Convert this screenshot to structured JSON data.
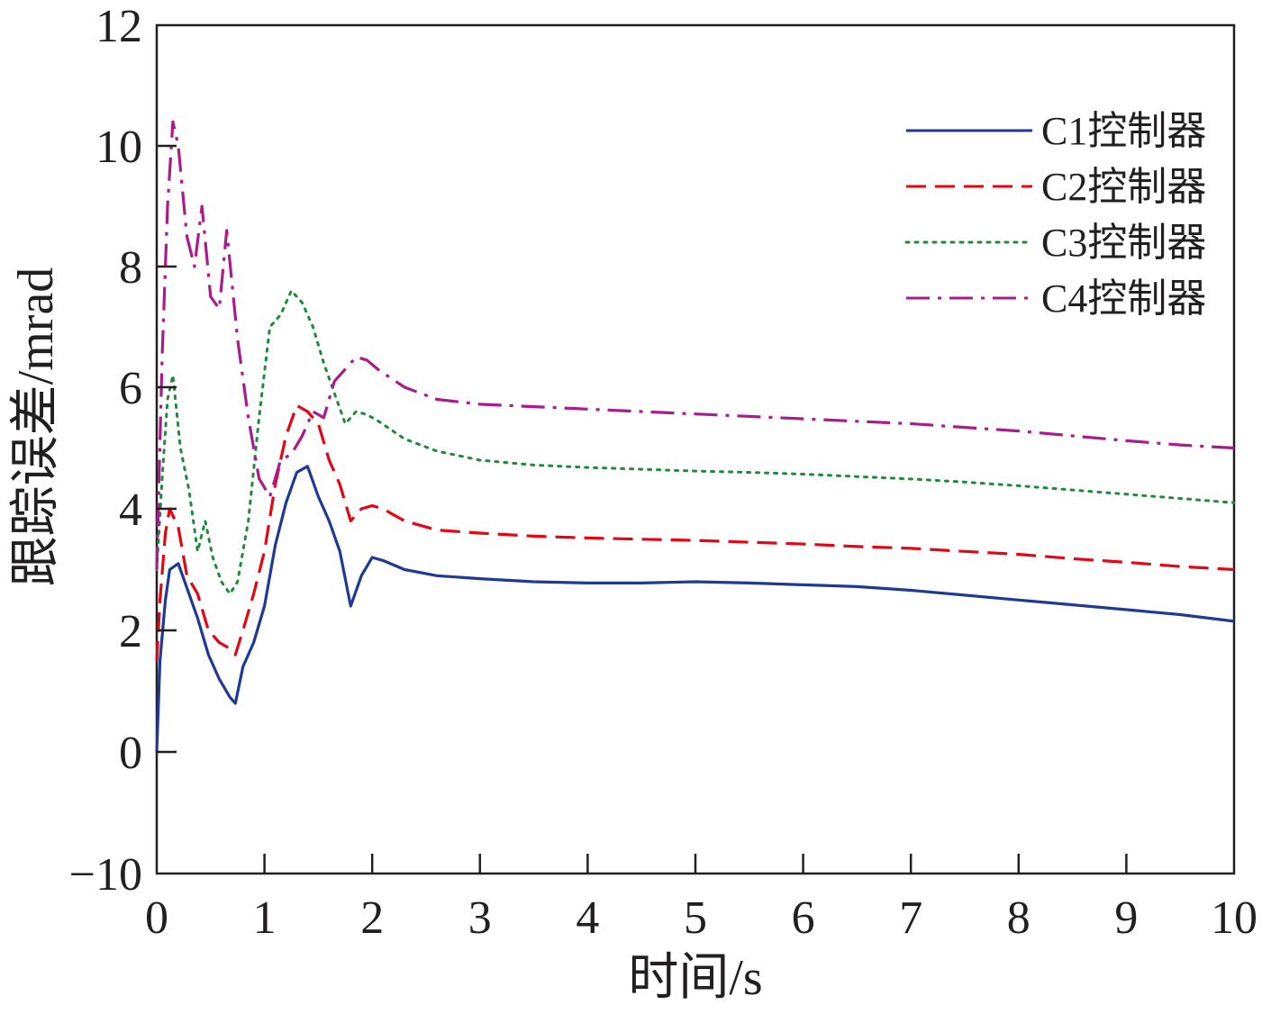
{
  "chart_data": {
    "type": "line",
    "title": "",
    "xlabel": "时间/s",
    "ylabel": "跟踪误差/mrad",
    "xlim": [
      0,
      10
    ],
    "ylim": [
      -10,
      12
    ],
    "y_ticks": [
      -10,
      0,
      2,
      4,
      6,
      8,
      10,
      12
    ],
    "y_tick_labels": [
      "−10",
      "0",
      "2",
      "4",
      "6",
      "8",
      "10",
      "12"
    ],
    "x_ticks": [
      0,
      1,
      2,
      3,
      4,
      5,
      6,
      7,
      8,
      9,
      10
    ],
    "x_tick_labels": [
      "0",
      "1",
      "2",
      "3",
      "4",
      "5",
      "6",
      "7",
      "8",
      "9",
      "10"
    ],
    "grid": false,
    "legend_position": "top-right",
    "series": [
      {
        "name": "C1控制器",
        "color": "#1f3a93",
        "dash": "solid",
        "x": [
          0,
          0.03,
          0.08,
          0.12,
          0.2,
          0.28,
          0.38,
          0.48,
          0.58,
          0.68,
          0.73,
          0.8,
          0.9,
          1.0,
          1.1,
          1.2,
          1.3,
          1.4,
          1.5,
          1.6,
          1.7,
          1.8,
          1.9,
          2.0,
          2.1,
          2.3,
          2.6,
          3.0,
          3.5,
          4.0,
          4.5,
          5.0,
          5.5,
          6.0,
          6.5,
          7.0,
          7.5,
          8.0,
          8.5,
          9.0,
          9.5,
          10.0
        ],
        "y": [
          0,
          1.5,
          2.5,
          3.0,
          3.1,
          2.7,
          2.2,
          1.6,
          1.2,
          0.9,
          0.8,
          1.4,
          1.8,
          2.4,
          3.4,
          4.1,
          4.6,
          4.7,
          4.2,
          3.8,
          3.3,
          2.4,
          2.9,
          3.2,
          3.15,
          3.0,
          2.9,
          2.85,
          2.8,
          2.78,
          2.78,
          2.8,
          2.78,
          2.75,
          2.72,
          2.66,
          2.58,
          2.5,
          2.42,
          2.34,
          2.26,
          2.15
        ]
      },
      {
        "name": "C2控制器",
        "color": "#e30613",
        "dash": "dashed",
        "x": [
          0,
          0.03,
          0.08,
          0.12,
          0.2,
          0.28,
          0.38,
          0.48,
          0.58,
          0.68,
          0.73,
          0.8,
          0.9,
          1.0,
          1.1,
          1.2,
          1.3,
          1.4,
          1.5,
          1.6,
          1.7,
          1.8,
          1.9,
          2.0,
          2.1,
          2.3,
          2.6,
          3.0,
          3.5,
          4.0,
          4.5,
          5.0,
          5.5,
          6.0,
          6.5,
          7.0,
          7.5,
          8.0,
          8.5,
          9.0,
          9.5,
          10.0
        ],
        "y": [
          1.5,
          2.5,
          3.6,
          4.0,
          3.7,
          2.9,
          2.6,
          2.0,
          1.8,
          1.7,
          1.6,
          2.0,
          2.6,
          3.3,
          4.4,
          5.2,
          5.7,
          5.6,
          5.4,
          4.8,
          4.4,
          3.8,
          4.0,
          4.05,
          4.0,
          3.8,
          3.65,
          3.6,
          3.55,
          3.52,
          3.5,
          3.48,
          3.45,
          3.42,
          3.38,
          3.35,
          3.3,
          3.25,
          3.18,
          3.12,
          3.05,
          3.0
        ]
      },
      {
        "name": "C3控制器",
        "color": "#1e8a3c",
        "dash": "dotted",
        "x": [
          0,
          0.05,
          0.1,
          0.15,
          0.22,
          0.3,
          0.38,
          0.45,
          0.52,
          0.6,
          0.68,
          0.75,
          0.85,
          0.95,
          1.05,
          1.15,
          1.25,
          1.35,
          1.45,
          1.55,
          1.65,
          1.75,
          1.85,
          1.95,
          2.05,
          2.3,
          2.6,
          3.0,
          3.5,
          4.0,
          4.5,
          5.0,
          5.5,
          6.0,
          6.5,
          7.0,
          7.5,
          8.0,
          8.5,
          9.0,
          9.5,
          10.0
        ],
        "y": [
          3.0,
          4.5,
          5.8,
          6.2,
          5.0,
          4.3,
          3.3,
          3.8,
          3.2,
          2.8,
          2.6,
          2.8,
          3.8,
          5.5,
          7.0,
          7.2,
          7.6,
          7.4,
          7.0,
          6.4,
          5.9,
          5.4,
          5.6,
          5.55,
          5.45,
          5.15,
          4.95,
          4.8,
          4.72,
          4.68,
          4.65,
          4.62,
          4.6,
          4.57,
          4.53,
          4.49,
          4.44,
          4.38,
          4.31,
          4.24,
          4.17,
          4.1
        ]
      },
      {
        "name": "C4控制器",
        "color": "#a81c8e",
        "dash": "dashdot",
        "x": [
          0,
          0.05,
          0.1,
          0.15,
          0.2,
          0.28,
          0.35,
          0.42,
          0.5,
          0.58,
          0.65,
          0.75,
          0.85,
          0.95,
          1.05,
          1.15,
          1.25,
          1.35,
          1.45,
          1.55,
          1.65,
          1.75,
          1.85,
          1.95,
          2.05,
          2.3,
          2.6,
          3.0,
          3.5,
          4.0,
          4.5,
          5.0,
          5.5,
          6.0,
          6.5,
          7.0,
          7.5,
          8.0,
          8.5,
          9.0,
          9.5,
          10.0
        ],
        "y": [
          3.0,
          6.5,
          9.0,
          10.4,
          10.0,
          8.5,
          8.0,
          9.0,
          7.5,
          7.3,
          8.6,
          6.8,
          5.5,
          4.5,
          4.2,
          4.8,
          4.9,
          5.2,
          5.6,
          5.5,
          6.1,
          6.3,
          6.5,
          6.45,
          6.3,
          6.0,
          5.8,
          5.72,
          5.68,
          5.64,
          5.6,
          5.56,
          5.52,
          5.48,
          5.44,
          5.4,
          5.34,
          5.28,
          5.2,
          5.12,
          5.05,
          5.0
        ]
      }
    ]
  }
}
